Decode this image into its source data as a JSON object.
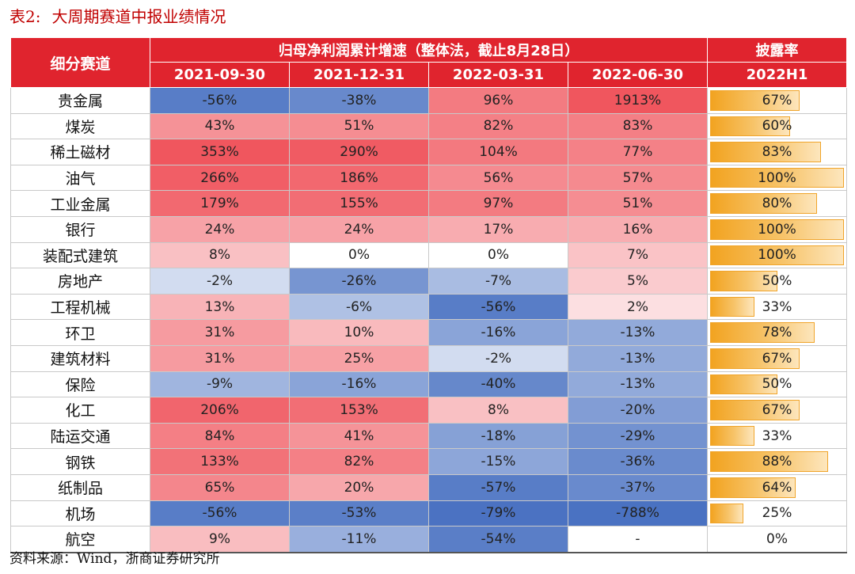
{
  "caption": {
    "number": "表2:",
    "title": "大周期赛道中报业绩情况"
  },
  "header": {
    "category_label": "细分赛道",
    "growth_group_label": "归母净利润累计增速（整体法，截止8月28日）",
    "growth_periods": [
      "2021-09-30",
      "2021-12-31",
      "2022-03-31",
      "2022-06-30"
    ],
    "disclosure_group_label": "披露率",
    "disclosure_period": "2022H1"
  },
  "colors": {
    "header_red": "#e0242e",
    "positive_red": "#f0565e",
    "negative_blue": "#4a72c2",
    "bar_orange": "#f2a320"
  },
  "rows": [
    {
      "name": "贵金属",
      "growth": [
        "-56%",
        "-38%",
        "96%",
        "1913%"
      ],
      "disclosure": "67%",
      "disclosure_value": 0.67
    },
    {
      "name": "煤炭",
      "growth": [
        "43%",
        "51%",
        "82%",
        "83%"
      ],
      "disclosure": "60%",
      "disclosure_value": 0.6
    },
    {
      "name": "稀土磁材",
      "growth": [
        "353%",
        "290%",
        "104%",
        "77%"
      ],
      "disclosure": "83%",
      "disclosure_value": 0.83
    },
    {
      "name": "油气",
      "growth": [
        "266%",
        "186%",
        "56%",
        "57%"
      ],
      "disclosure": "100%",
      "disclosure_value": 1.0
    },
    {
      "name": "工业金属",
      "growth": [
        "179%",
        "155%",
        "97%",
        "51%"
      ],
      "disclosure": "80%",
      "disclosure_value": 0.8
    },
    {
      "name": "银行",
      "growth": [
        "24%",
        "24%",
        "17%",
        "16%"
      ],
      "disclosure": "100%",
      "disclosure_value": 1.0
    },
    {
      "name": "装配式建筑",
      "growth": [
        "8%",
        "0%",
        "0%",
        "7%"
      ],
      "disclosure": "100%",
      "disclosure_value": 1.0
    },
    {
      "name": "房地产",
      "growth": [
        "-2%",
        "-26%",
        "-7%",
        "5%"
      ],
      "disclosure": "50%",
      "disclosure_value": 0.5
    },
    {
      "name": "工程机械",
      "growth": [
        "13%",
        "-6%",
        "-56%",
        "2%"
      ],
      "disclosure": "33%",
      "disclosure_value": 0.33
    },
    {
      "name": "环卫",
      "growth": [
        "31%",
        "10%",
        "-16%",
        "-13%"
      ],
      "disclosure": "78%",
      "disclosure_value": 0.78
    },
    {
      "name": "建筑材料",
      "growth": [
        "31%",
        "25%",
        "-2%",
        "-13%"
      ],
      "disclosure": "67%",
      "disclosure_value": 0.67
    },
    {
      "name": "保险",
      "growth": [
        "-9%",
        "-16%",
        "-40%",
        "-13%"
      ],
      "disclosure": "50%",
      "disclosure_value": 0.5
    },
    {
      "name": "化工",
      "growth": [
        "206%",
        "153%",
        "8%",
        "-20%"
      ],
      "disclosure": "67%",
      "disclosure_value": 0.67
    },
    {
      "name": "陆运交通",
      "growth": [
        "84%",
        "41%",
        "-18%",
        "-29%"
      ],
      "disclosure": "33%",
      "disclosure_value": 0.33
    },
    {
      "name": "钢铁",
      "growth": [
        "133%",
        "82%",
        "-15%",
        "-36%"
      ],
      "disclosure": "88%",
      "disclosure_value": 0.88
    },
    {
      "name": "纸制品",
      "growth": [
        "65%",
        "20%",
        "-57%",
        "-37%"
      ],
      "disclosure": "64%",
      "disclosure_value": 0.64
    },
    {
      "name": "机场",
      "growth": [
        "-56%",
        "-53%",
        "-79%",
        "-788%"
      ],
      "disclosure": "25%",
      "disclosure_value": 0.25
    },
    {
      "name": "航空",
      "growth": [
        "9%",
        "-11%",
        "-54%",
        "-"
      ],
      "disclosure": "0%",
      "disclosure_value": 0.0
    }
  ],
  "source": "资料来源：Wind，浙商证券研究所"
}
